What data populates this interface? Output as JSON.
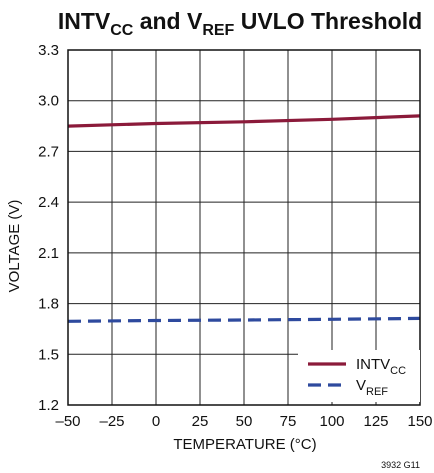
{
  "chart_data": {
    "type": "line",
    "title": {
      "base1": "INTV",
      "sub1": "CC",
      "mid": " and V",
      "sub2": "REF",
      "tail": " UVLO Threshold"
    },
    "xlabel": "TEMPERATURE (°C)",
    "ylabel": "VOLTAGE (V)",
    "xlim": [
      -50,
      150
    ],
    "ylim": [
      1.2,
      3.3
    ],
    "xticks": [
      -50,
      -25,
      0,
      25,
      50,
      75,
      100,
      125,
      150
    ],
    "xtick_labels": [
      "–50",
      "–25",
      "0",
      "25",
      "50",
      "75",
      "100",
      "125",
      "150"
    ],
    "yticks": [
      1.2,
      1.5,
      1.8,
      2.1,
      2.4,
      2.7,
      3.0,
      3.3
    ],
    "ytick_labels": [
      "1.2",
      "1.5",
      "1.8",
      "2.1",
      "2.4",
      "2.7",
      "3.0",
      "3.3"
    ],
    "grid": true,
    "legend_position": "bottom-right",
    "series": [
      {
        "name": "INTVCC",
        "legend_base": "INTV",
        "legend_sub": "CC",
        "color": "#8b1a3a",
        "dash": "solid",
        "x": [
          -50,
          0,
          50,
          100,
          150
        ],
        "y": [
          2.85,
          2.865,
          2.875,
          2.89,
          2.91
        ]
      },
      {
        "name": "VREF",
        "legend_base": "V",
        "legend_sub": "REF",
        "color": "#2e4a9e",
        "dash": "dashed",
        "x": [
          -50,
          0,
          50,
          100,
          150
        ],
        "y": [
          1.695,
          1.7,
          1.703,
          1.707,
          1.712
        ]
      }
    ],
    "figure_code": "3932 G11"
  }
}
